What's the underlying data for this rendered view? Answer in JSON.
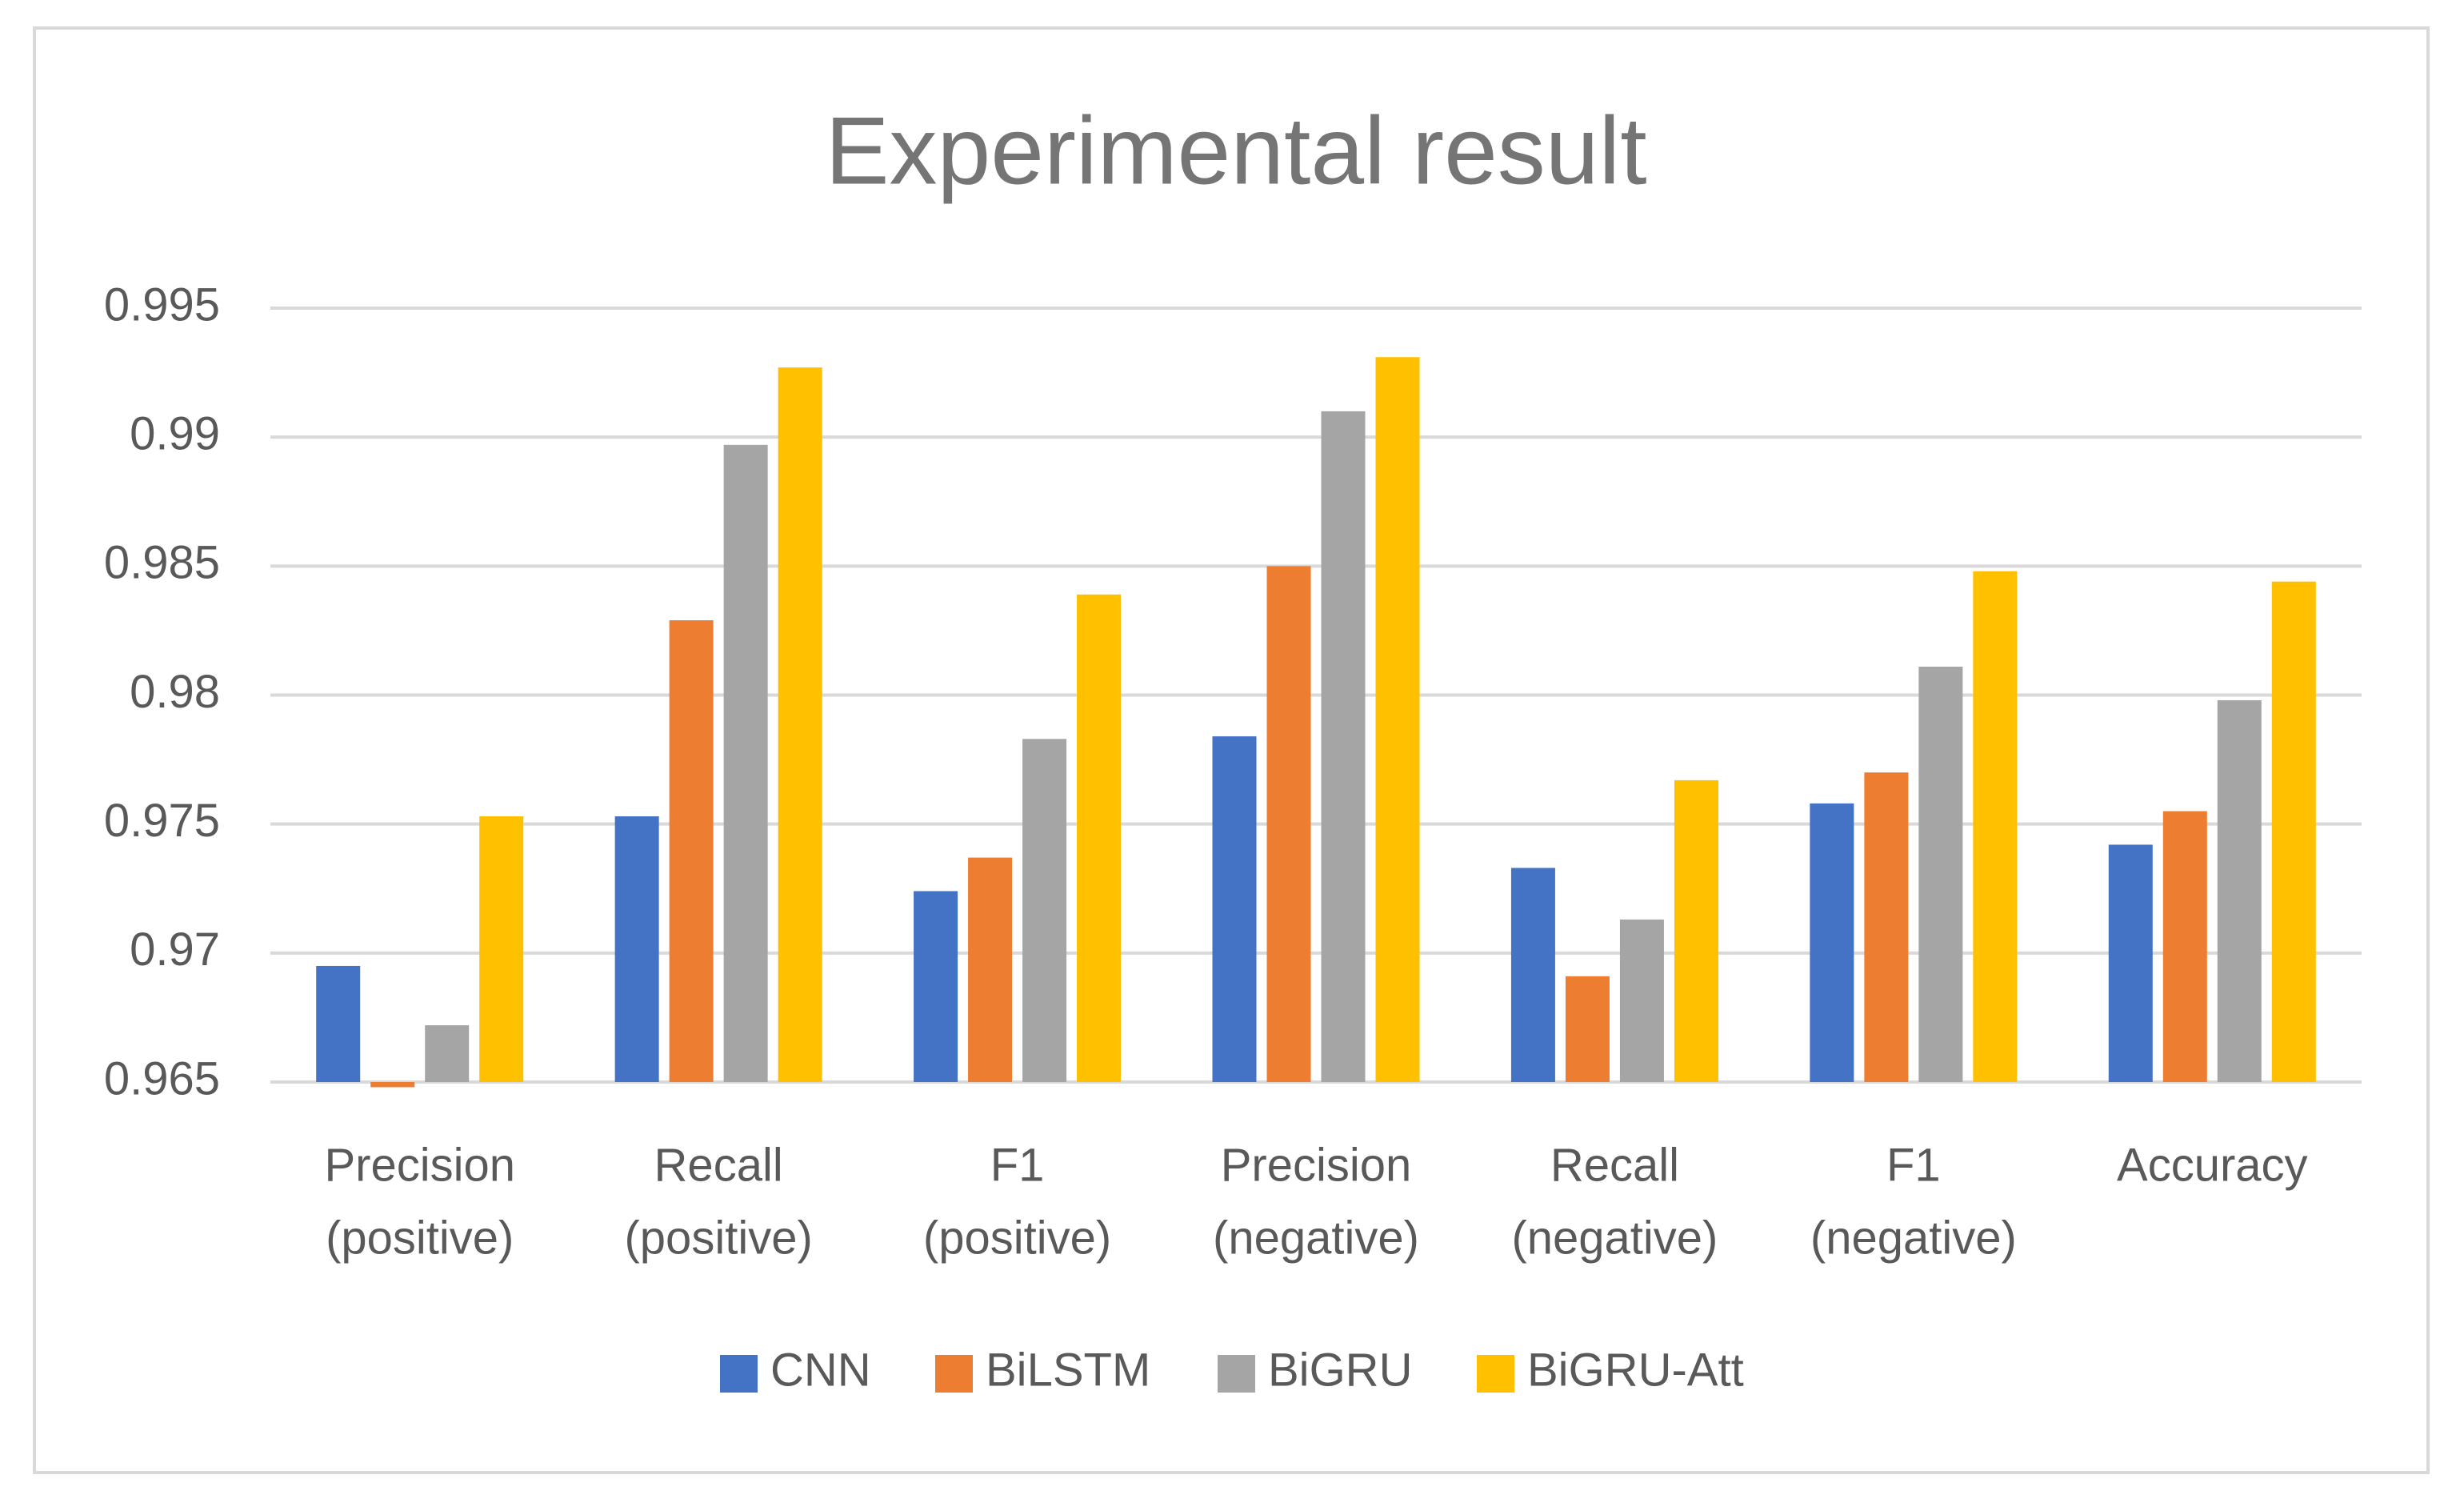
{
  "chart_data": {
    "type": "bar",
    "title": "Experimental result",
    "categories": [
      [
        "Precision",
        "(positive)"
      ],
      [
        "Recall",
        "(positive)"
      ],
      [
        "F1",
        "(positive)"
      ],
      [
        "Precision",
        "(negative)"
      ],
      [
        "Recall",
        "(negative)"
      ],
      [
        "F1",
        "(negative)"
      ],
      [
        "Accuracy"
      ]
    ],
    "series": [
      {
        "name": "CNN",
        "color": "#4472c4",
        "values": [
          0.9695,
          0.9753,
          0.9724,
          0.9784,
          0.9733,
          0.9758,
          0.9742
        ]
      },
      {
        "name": "BiLSTM",
        "color": "#ed7d31",
        "values": [
          0.9648,
          0.9829,
          0.9737,
          0.985,
          0.9691,
          0.977,
          0.9755
        ]
      },
      {
        "name": "BiGRU",
        "color": "#a5a5a5",
        "values": [
          0.9672,
          0.9897,
          0.9783,
          0.991,
          0.9713,
          0.9811,
          0.9798
        ]
      },
      {
        "name": "BiGRU-Att",
        "color": "#ffc000",
        "values": [
          0.9753,
          0.9927,
          0.9839,
          0.9931,
          0.9767,
          0.9848,
          0.9844
        ]
      }
    ],
    "ylim": [
      0.965,
      0.995
    ],
    "yticks": [
      0.965,
      0.97,
      0.975,
      0.98,
      0.985,
      0.99,
      0.995
    ],
    "grid": true,
    "legend": "bottom"
  }
}
